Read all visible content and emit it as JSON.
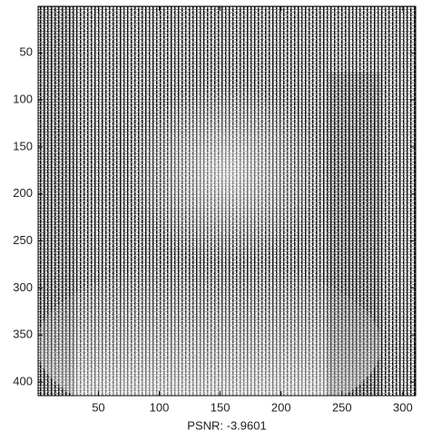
{
  "chart_data": {
    "type": "image",
    "xlabel": "PSNR: -3.9601",
    "xlim": [
      0.5,
      310.5
    ],
    "ylim": [
      0.5,
      414.5
    ],
    "y_reversed": true,
    "xticks": [
      50,
      100,
      150,
      200,
      250,
      300
    ],
    "yticks": [
      50,
      100,
      150,
      200,
      250,
      300,
      350,
      400
    ]
  }
}
